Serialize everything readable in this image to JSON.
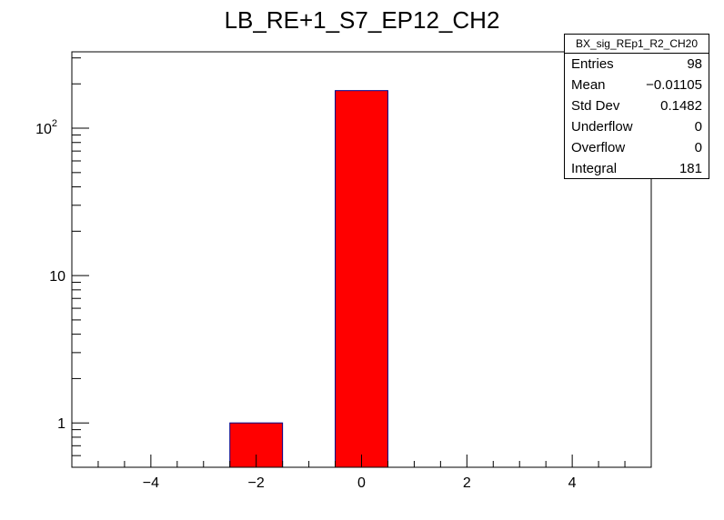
{
  "chart_data": {
    "type": "bar",
    "title": "LB_RE+1_S7_EP12_CH2",
    "xlabel": "",
    "ylabel": "",
    "xlim": [
      -5.5,
      5.5
    ],
    "ylim": [
      0.5,
      330
    ],
    "yscale": "log",
    "bin_width": 1,
    "bars": [
      {
        "x": -2,
        "value": 1
      },
      {
        "x": 0,
        "value": 180
      }
    ],
    "x_ticks": [
      -4,
      -2,
      0,
      2,
      4
    ],
    "x_tick_labels": [
      "−4",
      "−2",
      "0",
      "2",
      "4"
    ],
    "y_ticks": [
      1,
      10,
      100
    ],
    "y_tick_labels": [
      "1",
      "10",
      "10^2"
    ],
    "bar_fill": "#ff0000",
    "bar_edge": "#00008b",
    "grid": false
  },
  "stats_box": {
    "name": "BX_sig_REp1_R2_CH20",
    "rows": [
      {
        "label": "Entries",
        "value": "98"
      },
      {
        "label": "Mean",
        "value": "−0.01105"
      },
      {
        "label": "Std Dev",
        "value": "0.1482"
      },
      {
        "label": "Underflow",
        "value": "0"
      },
      {
        "label": "Overflow",
        "value": "0"
      },
      {
        "label": "Integral",
        "value": "181"
      }
    ]
  }
}
